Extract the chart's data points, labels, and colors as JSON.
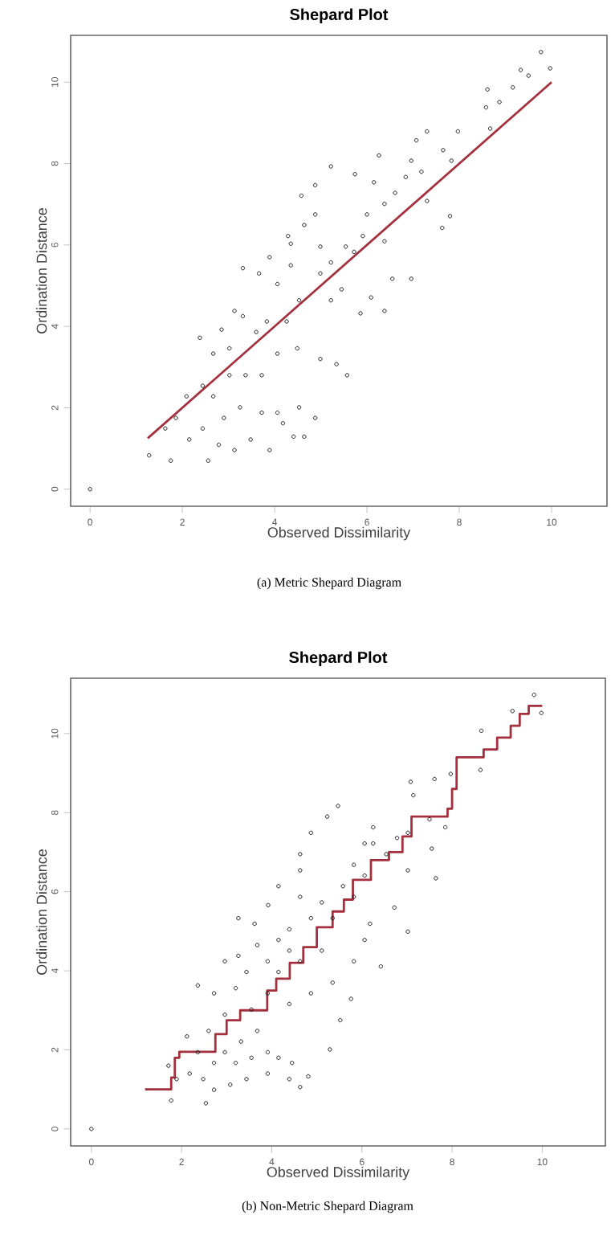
{
  "chart_data": [
    {
      "type": "scatter",
      "title": "Shepard Plot",
      "xlabel": "Observed Dissimilarity",
      "ylabel": "Ordination Distance",
      "xlim": [
        -0.42,
        11.2
      ],
      "ylim": [
        -0.42,
        11.15
      ],
      "xticks": [
        0,
        2,
        4,
        6,
        8,
        10
      ],
      "yticks": [
        0,
        2,
        4,
        6,
        8,
        10
      ],
      "annotations": [
        "(a) Metric Shepard Diagram"
      ],
      "series": [
        {
          "marker": "circle",
          "color": "#1a1a1a",
          "x": [
            9.77,
            9.97,
            9.33,
            9.5,
            9.16,
            8.61,
            8.58,
            8.87,
            8.67,
            7.97,
            7.3,
            7.07,
            7.83,
            7.8,
            7.63,
            7.3,
            6.96,
            6.55,
            6.38,
            6.09,
            5.86,
            5.57,
            5.22,
            5.74,
            4.88,
            4.58,
            4.64,
            4.35,
            4.88,
            6.15,
            6.26,
            6.96,
            6.61,
            6.0,
            5.54,
            5.22,
            4.99,
            5.72,
            5.45,
            4.53,
            4.06,
            3.31,
            3.66,
            3.89,
            3.31,
            3.13,
            2.85,
            2.38,
            2.67,
            3.02,
            3.6,
            3.83,
            4.26,
            4.49,
            4.99,
            5.34,
            4.06,
            3.72,
            3.37,
            3.02,
            2.67,
            2.44,
            2.09,
            1.86,
            1.63,
            1.28,
            1.75,
            2.15,
            2.56,
            2.79,
            3.13,
            3.48,
            3.89,
            4.18,
            4.41,
            4.64,
            4.88,
            4.53,
            4.06,
            3.72,
            3.25,
            2.9,
            2.44,
            0,
            5.22,
            4.99,
            4.35,
            4.29,
            6.38,
            6.84,
            7.18,
            7.65,
            6.38,
            5.91
          ],
          "values": [
            10.74,
            10.34,
            10.3,
            10.16,
            9.87,
            9.82,
            9.38,
            9.51,
            8.86,
            8.79,
            8.79,
            8.57,
            8.07,
            6.71,
            6.42,
            7.08,
            5.17,
            5.17,
            4.38,
            4.71,
            4.32,
            2.8,
            7.93,
            7.74,
            6.75,
            7.21,
            6.49,
            6.03,
            7.47,
            7.54,
            8.2,
            8.07,
            7.28,
            6.75,
            5.96,
            5.57,
            5.3,
            5.83,
            4.91,
            4.64,
            5.04,
            5.43,
            5.3,
            5.7,
            4.25,
            4.38,
            3.92,
            3.72,
            3.33,
            3.46,
            3.86,
            4.12,
            4.12,
            3.46,
            3.2,
            3.07,
            3.33,
            2.8,
            2.8,
            2.8,
            2.28,
            2.54,
            2.28,
            1.75,
            1.49,
            0.83,
            0.7,
            1.22,
            0.7,
            1.09,
            0.96,
            1.22,
            0.96,
            1.62,
            1.29,
            1.29,
            1.75,
            2.01,
            1.88,
            1.88,
            2.01,
            1.75,
            1.49,
            0,
            4.64,
            5.96,
            5.5,
            6.22,
            7.01,
            7.67,
            7.8,
            8.33,
            6.09,
            6.22
          ]
        },
        {
          "type": "line",
          "color": "#a3303c",
          "x": [
            1.25,
            10
          ],
          "values": [
            1.25,
            10
          ]
        }
      ]
    },
    {
      "type": "scatter",
      "title": "Shepard Plot",
      "xlabel": "Observed Dissimilarity",
      "ylabel": "Ordination Distance",
      "xlim": [
        -0.46,
        11.4
      ],
      "ylim": [
        -0.43,
        11.4
      ],
      "xticks": [
        0,
        2,
        4,
        6,
        8,
        10
      ],
      "yticks": [
        0,
        2,
        4,
        6,
        8,
        10
      ],
      "annotations": [
        "(b) Non-Metric Shepard Diagram"
      ],
      "series": [
        {
          "marker": "circle",
          "color": "#1a1a1a",
          "x": [
            9.82,
            9.98,
            9.34,
            8.65,
            8.63,
            7.97,
            7.61,
            7.08,
            7.14,
            7.5,
            7.55,
            7.64,
            7.85,
            7.02,
            7.02,
            6.72,
            6.42,
            7.02,
            6.18,
            6.06,
            5.82,
            5.76,
            5.52,
            5.29,
            5.47,
            5.23,
            4.87,
            4.63,
            4.63,
            4.15,
            3.92,
            3.62,
            3.26,
            3.26,
            2.96,
            2.36,
            2.72,
            2.96,
            3.2,
            3.44,
            3.68,
            3.91,
            4.15,
            4.39,
            5.11,
            5.58,
            5.82,
            6.25,
            6.25,
            6.06,
            5.35,
            4.87,
            4.63,
            4.39,
            4.15,
            4.63,
            5.11,
            5.35,
            4.87,
            4.39,
            3.91,
            3.55,
            3.68,
            3.32,
            2.96,
            2.72,
            2.48,
            2.72,
            2.54,
            3.08,
            3.44,
            3.91,
            4.15,
            4.45,
            4.63,
            4.81,
            4.39,
            3.91,
            3.55,
            3.2,
            2.12,
            2.36,
            2.18,
            1.77,
            1.71,
            1.89,
            2.6,
            0,
            5.82,
            6.54,
            6.78,
            6.06
          ],
          "values": [
            10.98,
            10.52,
            10.57,
            10.07,
            9.08,
            8.98,
            8.85,
            8.78,
            8.44,
            7.83,
            7.09,
            6.34,
            7.63,
            7.49,
            6.54,
            5.6,
            4.11,
            4.99,
            5.19,
            4.78,
            4.24,
            3.29,
            2.75,
            2.01,
            8.17,
            7.9,
            7.49,
            6.95,
            6.54,
            6.14,
            5.66,
            5.19,
            5.33,
            4.38,
            4.24,
            3.63,
            3.43,
            2.89,
            3.56,
            3.97,
            4.65,
            4.24,
            4.78,
            5.05,
            5.73,
            6.14,
            6.68,
            7.22,
            7.63,
            6.41,
            5.33,
            5.33,
            5.87,
            4.51,
            3.97,
            4.24,
            4.51,
            3.7,
            3.43,
            3.16,
            3.43,
            3.02,
            2.48,
            2.21,
            1.94,
            1.67,
            1.26,
            0.99,
            0.65,
            1.12,
            1.26,
            1.4,
            1.8,
            1.67,
            1.06,
            1.33,
            1.26,
            1.94,
            1.8,
            1.67,
            2.34,
            1.94,
            1.4,
            0.72,
            1.6,
            1.26,
            2.48,
            0,
            5.87,
            6.95,
            7.36,
            7.22
          ]
        },
        {
          "type": "step",
          "color": "#a3303c",
          "x": [
            1.19,
            1.77,
            1.85,
            1.95,
            2.75,
            3.0,
            3.3,
            3.9,
            4.1,
            4.4,
            4.7,
            5.0,
            5.35,
            5.6,
            5.8,
            6.2,
            6.6,
            6.9,
            7.1,
            7.9,
            8.0,
            8.1,
            8.7,
            9.0,
            9.3,
            9.5,
            9.7,
            10.0
          ],
          "values": [
            1.0,
            1.3,
            1.8,
            1.95,
            2.4,
            2.75,
            3.0,
            3.5,
            3.8,
            4.2,
            4.6,
            5.1,
            5.5,
            5.8,
            6.3,
            6.8,
            7.0,
            7.4,
            7.9,
            8.1,
            8.6,
            9.4,
            9.6,
            9.9,
            10.2,
            10.5,
            10.7,
            10.7
          ]
        }
      ]
    }
  ]
}
